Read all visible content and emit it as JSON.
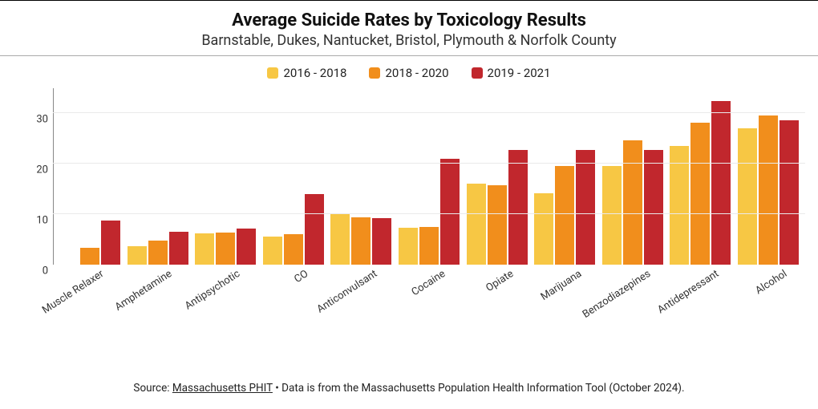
{
  "chart": {
    "type": "bar",
    "title": "Average Suicide Rates by Toxicology Results",
    "title_fontsize": 22,
    "subtitle": "Barnstable, Dukes, Nantucket, Bristol, Plymouth & Norfolk County",
    "subtitle_fontsize": 18,
    "background_color": "#ffffff",
    "grid_color": "#eaeaea",
    "axis_color": "#888888",
    "text_color": "#222222",
    "ylim": [
      0,
      35
    ],
    "yticks": [
      0,
      10,
      20,
      30
    ],
    "label_fontsize": 13,
    "bar_width": 0.85,
    "series": [
      {
        "label": "2016 - 2018",
        "color": "#f7c744"
      },
      {
        "label": "2018 - 2020",
        "color": "#f18e1c"
      },
      {
        "label": "2019 - 2021",
        "color": "#c1272d"
      }
    ],
    "categories": [
      "Muscle Relaxer",
      "Amphetamine",
      "Antipsychotic",
      "CO",
      "Anticonvulsant",
      "Cocaine",
      "Opiate",
      "Marijuana",
      "Benzodiazepines",
      "Antidepressant",
      "Alcohol"
    ],
    "values": [
      [
        null,
        3.3,
        8.8
      ],
      [
        3.6,
        4.8,
        6.5
      ],
      [
        6.2,
        6.3,
        7.2
      ],
      [
        5.6,
        6.0,
        14.0
      ],
      [
        10.1,
        9.4,
        9.2
      ],
      [
        7.3,
        7.5,
        21.0
      ],
      [
        16.0,
        15.7,
        22.8
      ],
      [
        14.2,
        19.6,
        22.8
      ],
      [
        19.5,
        24.6,
        22.8
      ],
      [
        23.6,
        28.2,
        32.5
      ],
      [
        27.0,
        29.6,
        28.7
      ]
    ]
  },
  "footer": {
    "prefix": "Source: ",
    "source_label": "Massachusetts PHIT",
    "suffix": " • Data is from the Massachusetts Population Health Information Tool (October 2024)."
  }
}
